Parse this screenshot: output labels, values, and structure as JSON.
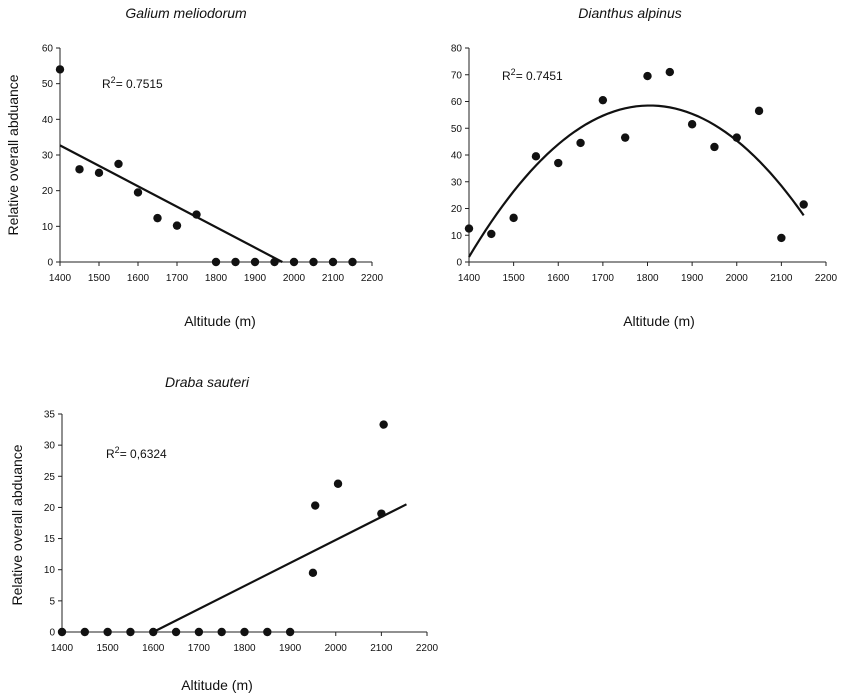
{
  "chart_data": [
    {
      "type": "scatter",
      "title": "Galium meliodorum",
      "xlabel": "Altitude (m)",
      "ylabel": "Relative overall abduance",
      "xlim": [
        1400,
        2200
      ],
      "ylim": [
        0,
        60
      ],
      "xticks": [
        1400,
        1500,
        1600,
        1700,
        1800,
        1900,
        2000,
        2100,
        2200
      ],
      "yticks": [
        0,
        10,
        20,
        30,
        40,
        50,
        60
      ],
      "annotation": {
        "prefix": "R",
        "sup": "2",
        "text": "= 0.7515"
      },
      "points": {
        "x": [
          1400,
          1450,
          1500,
          1550,
          1600,
          1650,
          1700,
          1750,
          1800,
          1850,
          1900,
          1950,
          2000,
          2050,
          2100,
          2150
        ],
        "y": [
          54,
          26,
          25,
          27.5,
          19.5,
          12.3,
          10.2,
          13.3,
          0,
          0,
          0,
          0,
          0,
          0,
          0,
          0
        ]
      },
      "trendline": {
        "kind": "linear",
        "x": [
          1400,
          1970
        ],
        "y": [
          32.7,
          0
        ]
      }
    },
    {
      "type": "scatter",
      "title": "Dianthus alpinus",
      "xlabel": "Altitude (m)",
      "ylabel": "",
      "xlim": [
        1400,
        2200
      ],
      "ylim": [
        0,
        80
      ],
      "xticks": [
        1400,
        1500,
        1600,
        1700,
        1800,
        1900,
        2000,
        2100,
        2200
      ],
      "yticks": [
        0,
        10,
        20,
        30,
        40,
        50,
        60,
        70,
        80
      ],
      "annotation": {
        "prefix": "R",
        "sup": "2",
        "text": "= 0.7451"
      },
      "points": {
        "x": [
          1400,
          1450,
          1500,
          1550,
          1600,
          1650,
          1700,
          1750,
          1800,
          1850,
          1900,
          1950,
          2000,
          2050,
          2100,
          2150
        ],
        "y": [
          12.5,
          10.5,
          16.5,
          39.5,
          37,
          44.5,
          60.5,
          46.5,
          69.5,
          71,
          51.5,
          43,
          46.5,
          56.5,
          9,
          21.5
        ]
      },
      "trendline": {
        "kind": "quadratic",
        "x": [
          1400,
          2150
        ],
        "vertex": [
          1805,
          58.5
        ],
        "a": -0.000345
      }
    },
    {
      "type": "scatter",
      "title": "Draba sauteri",
      "xlabel": "Altitude (m)",
      "ylabel": "Relative overall abduance",
      "xlim": [
        1400,
        2200
      ],
      "ylim": [
        0,
        35
      ],
      "xticks": [
        1400,
        1500,
        1600,
        1700,
        1800,
        1900,
        2000,
        2100,
        2200
      ],
      "yticks": [
        0,
        5,
        10,
        15,
        20,
        25,
        30,
        35
      ],
      "annotation": {
        "prefix": "R",
        "sup": "2",
        "text": "= 0,6324"
      },
      "points": {
        "x": [
          1400,
          1450,
          1500,
          1550,
          1600,
          1650,
          1700,
          1750,
          1800,
          1850,
          1900,
          1950,
          1955,
          2005,
          2100,
          2105
        ],
        "y": [
          0,
          0,
          0,
          0,
          0,
          0,
          0,
          0,
          0,
          0,
          0,
          9.5,
          20.3,
          23.8,
          19,
          33.3
        ]
      },
      "trendline": {
        "kind": "linear",
        "x": [
          1600,
          2155
        ],
        "y": [
          0,
          20.5
        ]
      }
    }
  ]
}
